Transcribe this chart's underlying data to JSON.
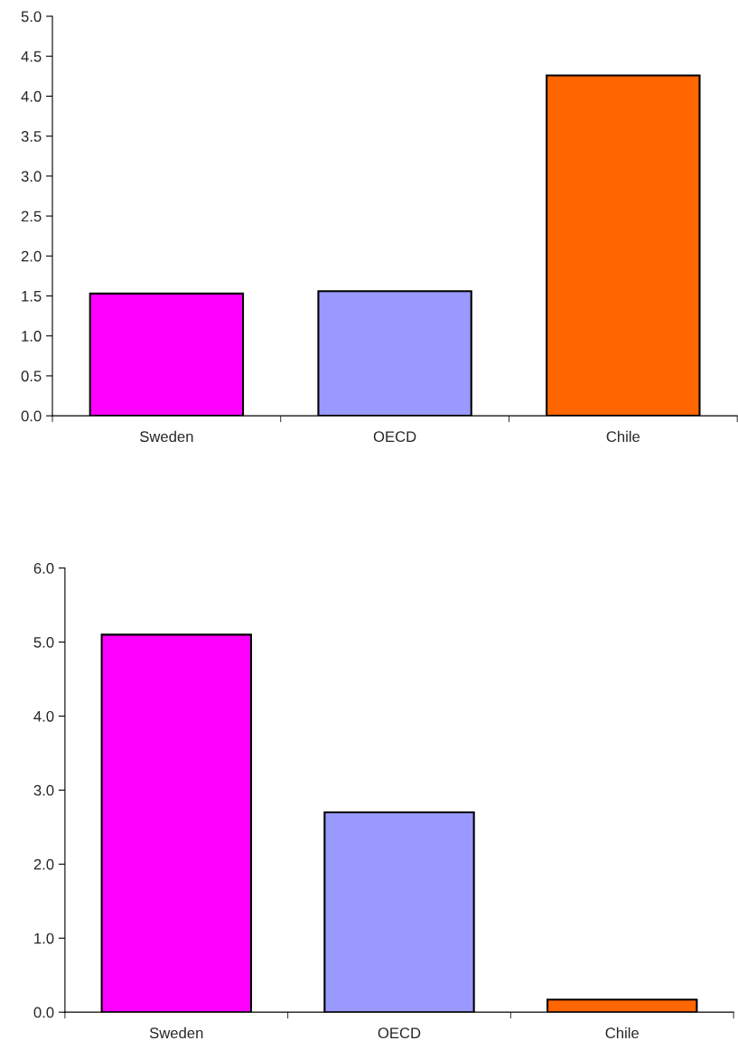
{
  "chart_data": [
    {
      "type": "bar",
      "categories": [
        "Sweden",
        "OECD",
        "Chile"
      ],
      "colors": [
        "#ff00ff",
        "#9999ff",
        "#ff6600"
      ],
      "values": [
        1.53,
        1.56,
        4.26
      ],
      "ylim": [
        0,
        5
      ],
      "yticks": [
        {
          "value": 0,
          "label": "0.0"
        },
        {
          "value": 0.5,
          "label": "0.5"
        },
        {
          "value": 1,
          "label": "1.0"
        },
        {
          "value": 1.5,
          "label": "1.5"
        },
        {
          "value": 2,
          "label": "2.0"
        },
        {
          "value": 2.5,
          "label": "2.5"
        },
        {
          "value": 3,
          "label": "3.0"
        },
        {
          "value": 3.5,
          "label": "3.5"
        },
        {
          "value": 4,
          "label": "4.0"
        },
        {
          "value": 4.5,
          "label": "4.5"
        },
        {
          "value": 5,
          "label": "5.0"
        }
      ],
      "grid": false,
      "legend": false
    },
    {
      "type": "bar",
      "categories": [
        "Sweden",
        "OECD",
        "Chile"
      ],
      "colors": [
        "#ff00ff",
        "#9999ff",
        "#ff6600"
      ],
      "values": [
        5.1,
        2.7,
        0.17
      ],
      "ylim": [
        0,
        6
      ],
      "yticks": [
        {
          "value": 0,
          "label": "0.0"
        },
        {
          "value": 1,
          "label": "1.0"
        },
        {
          "value": 2,
          "label": "2.0"
        },
        {
          "value": 3,
          "label": "3.0"
        },
        {
          "value": 4,
          "label": "4.0"
        },
        {
          "value": 5,
          "label": "5.0"
        },
        {
          "value": 6,
          "label": "6.0"
        }
      ],
      "grid": false,
      "legend": false
    }
  ]
}
